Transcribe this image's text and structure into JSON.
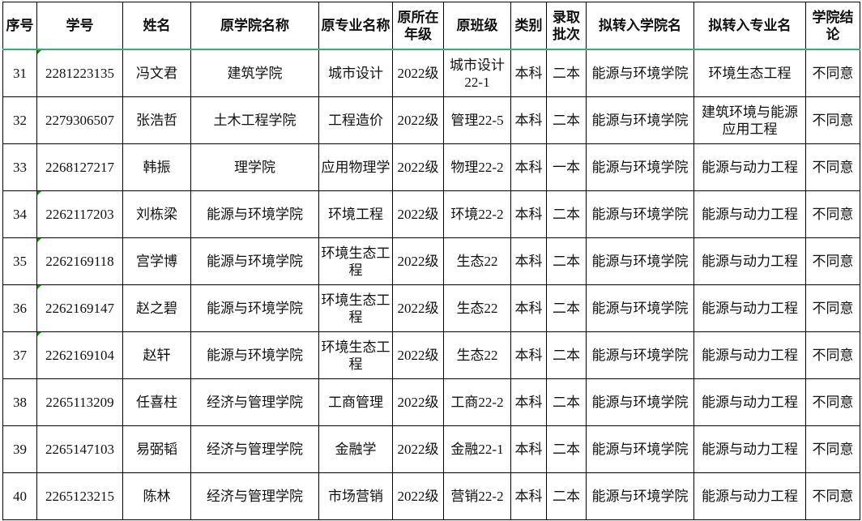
{
  "headers": [
    "序号",
    "学号",
    "姓名",
    "原学院名称",
    "原专业名称",
    "原所在年级",
    "原班级",
    "类别",
    "录取批次",
    "拟转入学院名",
    "拟转入专业名",
    "学院结论"
  ],
  "rows": [
    {
      "no": "31",
      "id": "2281223135",
      "name": "冯文君",
      "college": "建筑学院",
      "major": "城市设计",
      "grade": "2022级",
      "class": "城市设计22-1",
      "type": "本科",
      "batch": "二本",
      "to_college": "能源与环境学院",
      "to_major": "环境生态工程",
      "result": "不同意",
      "comment": true
    },
    {
      "no": "32",
      "id": "2279306507",
      "name": "张浩哲",
      "college": "土木工程学院",
      "major": "工程造价",
      "grade": "2022级",
      "class": "管理22-5",
      "type": "本科",
      "batch": "二本",
      "to_college": "能源与环境学院",
      "to_major": "建筑环境与能源应用工程",
      "result": "不同意",
      "comment": false
    },
    {
      "no": "33",
      "id": "2268127217",
      "name": "韩振",
      "college": "理学院",
      "major": "应用物理学",
      "grade": "2022级",
      "class": "物理22-2",
      "type": "本科",
      "batch": "一本",
      "to_college": "能源与环境学院",
      "to_major": "能源与动力工程",
      "result": "不同意",
      "comment": false
    },
    {
      "no": "34",
      "id": "2262117203",
      "name": "刘栋梁",
      "college": "能源与环境学院",
      "major": "环境工程",
      "grade": "2022级",
      "class": "环境22-2",
      "type": "本科",
      "batch": "二本",
      "to_college": "能源与环境学院",
      "to_major": "能源与动力工程",
      "result": "不同意",
      "comment": true
    },
    {
      "no": "35",
      "id": "2262169118",
      "name": "宫学博",
      "college": "能源与环境学院",
      "major": "环境生态工程",
      "grade": "2022级",
      "class": "生态22",
      "type": "本科",
      "batch": "二本",
      "to_college": "能源与环境学院",
      "to_major": "能源与动力工程",
      "result": "不同意",
      "comment": true
    },
    {
      "no": "36",
      "id": "2262169147",
      "name": "赵之碧",
      "college": "能源与环境学院",
      "major": "环境生态工程",
      "grade": "2022级",
      "class": "生态22",
      "type": "本科",
      "batch": "二本",
      "to_college": "能源与环境学院",
      "to_major": "能源与动力工程",
      "result": "不同意",
      "comment": true
    },
    {
      "no": "37",
      "id": "2262169104",
      "name": "赵轩",
      "college": "能源与环境学院",
      "major": "环境生态工程",
      "grade": "2022级",
      "class": "生态22",
      "type": "本科",
      "batch": "二本",
      "to_college": "能源与环境学院",
      "to_major": "能源与动力工程",
      "result": "不同意",
      "comment": true
    },
    {
      "no": "38",
      "id": "2265113209",
      "name": "任喜柱",
      "college": "经济与管理学院",
      "major": "工商管理",
      "grade": "2022级",
      "class": "工商22-2",
      "type": "本科",
      "batch": "二本",
      "to_college": "能源与环境学院",
      "to_major": "能源与动力工程",
      "result": "不同意",
      "comment": false
    },
    {
      "no": "39",
      "id": "2265147103",
      "name": "易弼韬",
      "college": "经济与管理学院",
      "major": "金融学",
      "grade": "2022级",
      "class": "金融22-1",
      "type": "本科",
      "batch": "二本",
      "to_college": "能源与环境学院",
      "to_major": "能源与动力工程",
      "result": "不同意",
      "comment": false
    },
    {
      "no": "40",
      "id": "2265123215",
      "name": "陈林",
      "college": "经济与管理学院",
      "major": "市场营销",
      "grade": "2022级",
      "class": "营销22-2",
      "type": "本科",
      "batch": "二本",
      "to_college": "能源与环境学院",
      "to_major": "能源与动力工程",
      "result": "不同意",
      "comment": false
    }
  ]
}
